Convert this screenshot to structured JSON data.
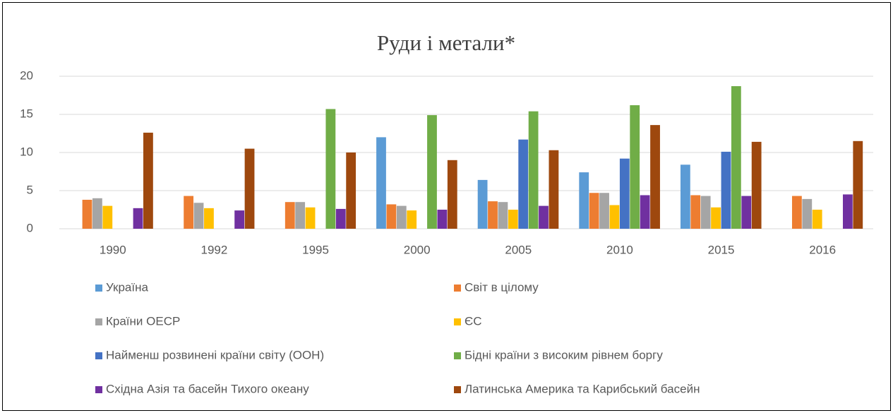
{
  "chart_data": {
    "type": "bar",
    "title": "Руди і метали*",
    "categories": [
      "1990",
      "1992",
      "1995",
      "2000",
      "2005",
      "2010",
      "2015",
      "2016"
    ],
    "series": [
      {
        "name": "Україна",
        "color": "#5b9bd5",
        "values": [
          null,
          null,
          null,
          12.0,
          6.4,
          7.4,
          8.4,
          null
        ]
      },
      {
        "name": "Світ в цілому",
        "color": "#ed7d31",
        "values": [
          3.8,
          4.3,
          3.5,
          3.2,
          3.6,
          4.7,
          4.4,
          4.3
        ]
      },
      {
        "name": "Країни ОЕСР",
        "color": "#a5a5a5",
        "values": [
          4.0,
          3.4,
          3.5,
          3.0,
          3.5,
          4.7,
          4.3,
          3.9
        ]
      },
      {
        "name": "ЄС",
        "color": "#ffc000",
        "values": [
          3.0,
          2.7,
          2.8,
          2.4,
          2.5,
          3.1,
          2.8,
          2.5
        ]
      },
      {
        "name": "Найменш розвинені країни світу (ООН)",
        "color": "#4472c4",
        "values": [
          null,
          null,
          null,
          null,
          11.7,
          9.2,
          10.1,
          null
        ]
      },
      {
        "name": "Бідні країни з високим рівнем боргу",
        "color": "#70ad47",
        "values": [
          null,
          null,
          15.7,
          14.9,
          15.4,
          16.2,
          18.7,
          null
        ]
      },
      {
        "name": "Східна Азія та басейн Тихого океану",
        "color": "#7030a0",
        "values": [
          2.7,
          2.4,
          2.6,
          2.5,
          3.0,
          4.4,
          4.3,
          4.5
        ]
      },
      {
        "name": "Латинська Америка та Карибський басейн",
        "color": "#9e480e",
        "values": [
          12.6,
          10.5,
          10.0,
          9.0,
          10.3,
          13.6,
          11.4,
          11.5
        ]
      }
    ],
    "ylim": [
      0,
      20
    ],
    "yticks": [
      0,
      5,
      10,
      15,
      20
    ],
    "grid": true,
    "legend": "bottom"
  }
}
